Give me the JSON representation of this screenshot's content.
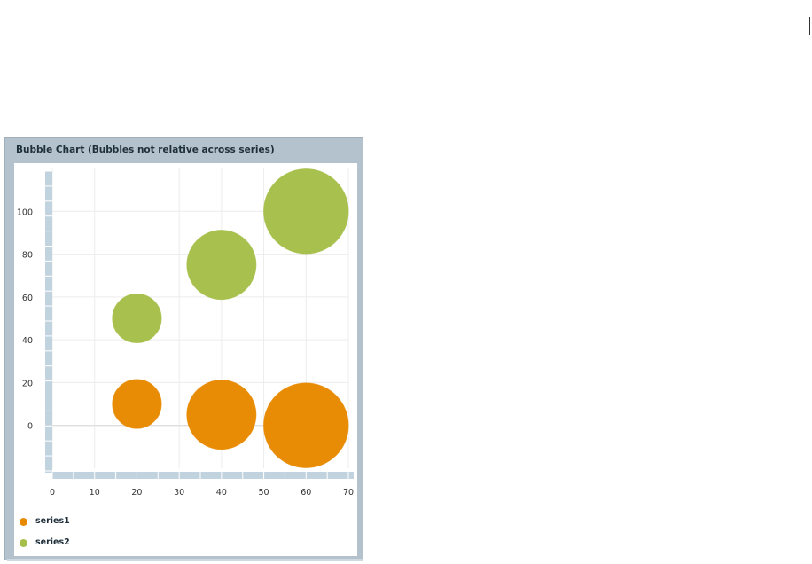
{
  "chart_data": {
    "type": "bubble",
    "title": "Bubble Chart (Bubbles not relative across series)",
    "xlabel": "",
    "ylabel": "",
    "xlim": [
      0,
      70
    ],
    "ylim": [
      -20,
      120
    ],
    "x_ticks": [
      0,
      10,
      20,
      30,
      40,
      50,
      60,
      70
    ],
    "y_ticks": [
      0,
      20,
      40,
      60,
      80,
      100
    ],
    "grid": true,
    "legend_position": "bottom-left",
    "series": [
      {
        "name": "series1",
        "color": "#e88a00",
        "points": [
          {
            "x": 20,
            "y": 10,
            "size": 1
          },
          {
            "x": 40,
            "y": 5,
            "size": 2
          },
          {
            "x": 60,
            "y": 0,
            "size": 3
          }
        ]
      },
      {
        "name": "series2",
        "color": "#a6bf4a",
        "points": [
          {
            "x": 20,
            "y": 50,
            "size": 1
          },
          {
            "x": 40,
            "y": 75,
            "size": 2
          },
          {
            "x": 60,
            "y": 100,
            "size": 3
          }
        ]
      }
    ]
  }
}
